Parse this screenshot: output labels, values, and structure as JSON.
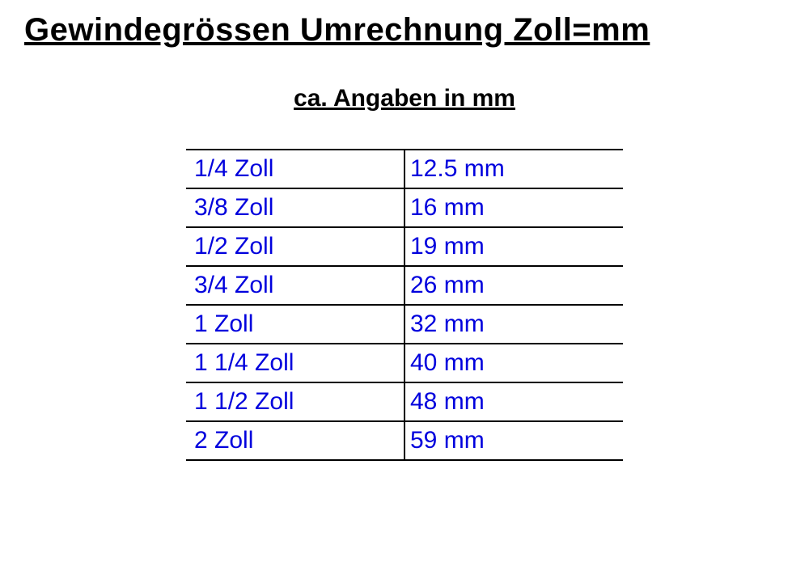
{
  "title": "Gewindegrössen Umrechnung Zoll=mm",
  "subtitle": "ca. Angaben in mm",
  "table": {
    "type": "table",
    "columns": [
      "zoll",
      "mm"
    ],
    "text_color": "#0000dd",
    "border_color": "#000000",
    "background_color": "#ffffff",
    "cell_fontsize": 30,
    "title_fontsize": 40,
    "subtitle_fontsize": 30,
    "col1_width": 0.5,
    "col2_width": 0.5,
    "rows": [
      {
        "zoll": "1/4 Zoll",
        "mm": "12.5 mm"
      },
      {
        "zoll": "3/8 Zoll",
        "mm": "16 mm"
      },
      {
        "zoll": "1/2 Zoll",
        "mm": "19 mm"
      },
      {
        "zoll": "3/4 Zoll",
        "mm": "26 mm"
      },
      {
        "zoll": "1 Zoll",
        "mm": "32 mm"
      },
      {
        "zoll": "1 1/4 Zoll",
        "mm": "40 mm"
      },
      {
        "zoll": "1 1/2 Zoll",
        "mm": "48 mm"
      },
      {
        "zoll": "2 Zoll",
        "mm": "59 mm"
      }
    ]
  }
}
